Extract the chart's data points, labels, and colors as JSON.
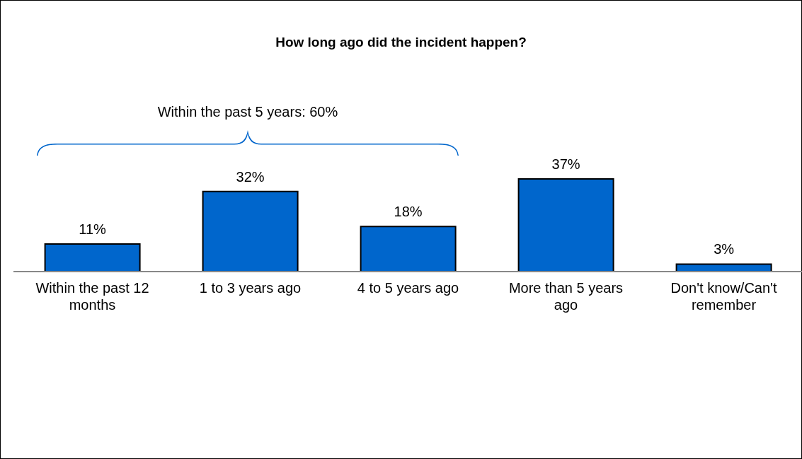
{
  "chart_data": {
    "type": "bar",
    "title": "How long ago did the incident happen?",
    "categories": [
      "Within the past 12 months",
      "1 to 3 years ago",
      "4 to 5 years ago",
      "More than 5 years ago",
      "Don't know/Can't remember"
    ],
    "values": [
      11,
      32,
      18,
      37,
      3
    ],
    "value_labels": [
      "11%",
      "32%",
      "18%",
      "37%",
      "3%"
    ],
    "color": "#0066cc",
    "annotations": [
      "Within the past 5 years: 60%"
    ]
  }
}
